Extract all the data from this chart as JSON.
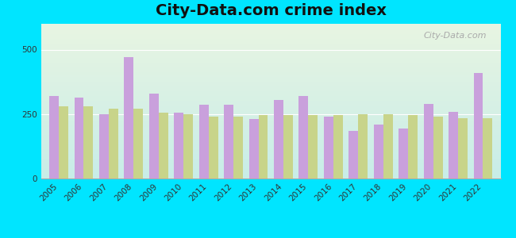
{
  "title": "City-Data.com crime index",
  "years": [
    2005,
    2006,
    2007,
    2008,
    2009,
    2010,
    2011,
    2012,
    2013,
    2014,
    2015,
    2016,
    2017,
    2018,
    2019,
    2020,
    2021,
    2022
  ],
  "south_hill": [
    320,
    315,
    250,
    470,
    330,
    255,
    285,
    285,
    230,
    305,
    320,
    240,
    185,
    210,
    195,
    290,
    260,
    410
  ],
  "us_average": [
    280,
    280,
    270,
    270,
    255,
    250,
    240,
    240,
    245,
    245,
    245,
    245,
    248,
    250,
    245,
    240,
    235,
    235
  ],
  "south_hill_color": "#c9a0dc",
  "us_avg_color": "#c8d48a",
  "background_outer": "#00e5ff",
  "background_top": "#e8f5e2",
  "background_bottom": "#c8ede8",
  "ylim": [
    0,
    600
  ],
  "yticks": [
    0,
    250,
    500
  ],
  "bar_width": 0.38,
  "watermark": "City-Data.com",
  "title_fontsize": 14,
  "tick_fontsize": 7.5
}
